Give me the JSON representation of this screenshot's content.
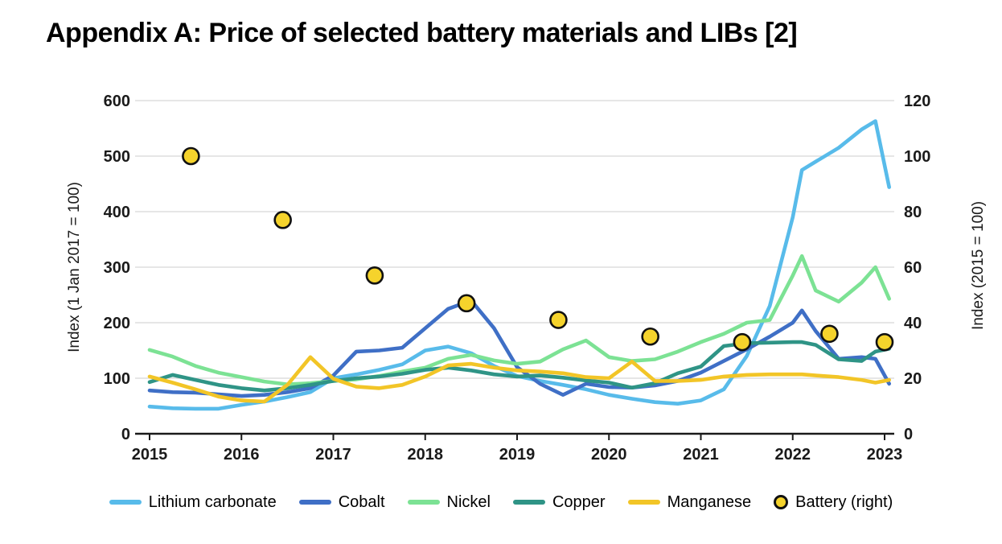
{
  "title": "Appendix A: Price of selected battery materials and LIBs [2]",
  "chart_data": {
    "type": "line",
    "title": "Appendix A: Price of selected battery materials and LIBs [2]",
    "xlabel": "",
    "ylabel_left": "Index (1 Jan 2017 = 100)",
    "ylabel_right": "Index (2015 = 100)",
    "grid": true,
    "legend_position": "bottom",
    "x_ticks": [
      2015,
      2016,
      2017,
      2018,
      2019,
      2020,
      2021,
      2022,
      2023
    ],
    "y_left": {
      "min": 0,
      "max": 600,
      "ticks": [
        0,
        100,
        200,
        300,
        400,
        500,
        600
      ]
    },
    "y_right": {
      "min": 0,
      "max": 120,
      "ticks": [
        0,
        20,
        40,
        60,
        80,
        100,
        120
      ]
    },
    "x": [
      2015.0,
      2015.25,
      2015.5,
      2015.75,
      2016.0,
      2016.25,
      2016.5,
      2016.75,
      2017.0,
      2017.25,
      2017.5,
      2017.75,
      2018.0,
      2018.25,
      2018.5,
      2018.75,
      2019.0,
      2019.25,
      2019.5,
      2019.75,
      2020.0,
      2020.25,
      2020.5,
      2020.75,
      2021.0,
      2021.25,
      2021.5,
      2021.75,
      2022.0,
      2022.1,
      2022.25,
      2022.5,
      2022.75,
      2022.9,
      2023.05
    ],
    "series": [
      {
        "name": "Lithium carbonate",
        "axis": "left",
        "color": "#58BBEA",
        "values": [
          49,
          46,
          45,
          45,
          52,
          58,
          66,
          75,
          100,
          107,
          115,
          125,
          150,
          157,
          145,
          122,
          104,
          95,
          88,
          80,
          70,
          63,
          57,
          54,
          60,
          80,
          140,
          230,
          390,
          475,
          490,
          515,
          548,
          563,
          444
        ]
      },
      {
        "name": "Cobalt",
        "axis": "left",
        "color": "#3F6FC6",
        "values": [
          78,
          75,
          74,
          71,
          68,
          70,
          75,
          82,
          105,
          148,
          150,
          155,
          190,
          225,
          240,
          190,
          120,
          90,
          70,
          90,
          84,
          83,
          87,
          95,
          110,
          131,
          152,
          175,
          200,
          222,
          185,
          135,
          138,
          135,
          90
        ]
      },
      {
        "name": "Nickel",
        "axis": "left",
        "color": "#7CE294",
        "values": [
          151,
          139,
          122,
          110,
          102,
          94,
          89,
          91,
          95,
          98,
          104,
          112,
          119,
          135,
          142,
          132,
          126,
          130,
          152,
          168,
          138,
          131,
          134,
          148,
          165,
          180,
          200,
          205,
          285,
          320,
          258,
          238,
          272,
          300,
          243
        ]
      },
      {
        "name": "Copper",
        "axis": "left",
        "color": "#2F9486",
        "values": [
          93,
          106,
          97,
          88,
          82,
          78,
          82,
          88,
          95,
          100,
          103,
          108,
          115,
          119,
          114,
          107,
          103,
          105,
          101,
          96,
          92,
          83,
          91,
          109,
          121,
          158,
          163,
          164,
          165,
          165,
          160,
          134,
          131,
          148,
          153
        ]
      },
      {
        "name": "Manganese",
        "axis": "left",
        "color": "#F2C527",
        "values": [
          103,
          92,
          80,
          67,
          60,
          58,
          88,
          138,
          99,
          85,
          82,
          88,
          103,
          123,
          126,
          119,
          114,
          112,
          109,
          102,
          100,
          130,
          95,
          95,
          97,
          103,
          106,
          107,
          107,
          107,
          105,
          102,
          97,
          92,
          97
        ]
      }
    ],
    "scatter": {
      "name": "Battery (right)",
      "axis": "right",
      "fill": "#F5D32C",
      "stroke": "#111111",
      "x": [
        2015.45,
        2016.45,
        2017.45,
        2018.45,
        2019.45,
        2020.45,
        2021.45,
        2022.4,
        2023.0
      ],
      "values": [
        100,
        77,
        57,
        47,
        41,
        35,
        33,
        36,
        33
      ]
    },
    "style": {
      "grid_color": "#D7D7D7",
      "axis_color": "#1A1A1A",
      "tick_label_color": "#1A1A1A"
    }
  }
}
